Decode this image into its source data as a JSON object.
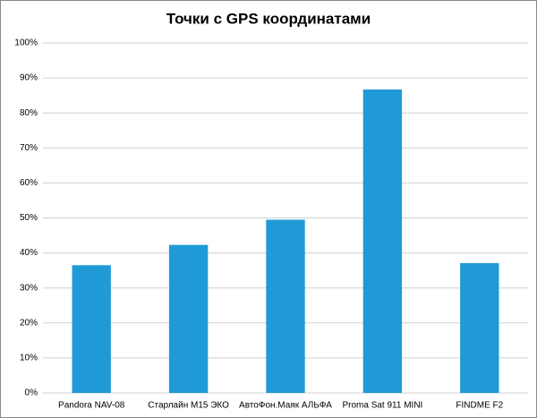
{
  "chart_data": {
    "type": "bar",
    "title": "Точки с GPS координатами",
    "categories": [
      "Pandora NAV-08",
      "Старлайн М15 ЭКО",
      "АвтоФон.Маяк АЛЬФА",
      "Proma Sat 911 MINI",
      "FINDME F2"
    ],
    "values": [
      36.5,
      42.3,
      49.5,
      86.7,
      37.1
    ],
    "color": "#1f9ad6",
    "ylim": [
      0,
      100
    ],
    "yticks": [
      {
        "value": 0,
        "label": "0%"
      },
      {
        "value": 10,
        "label": "10%"
      },
      {
        "value": 20,
        "label": "20%"
      },
      {
        "value": 30,
        "label": "30%"
      },
      {
        "value": 40,
        "label": "40%"
      },
      {
        "value": 50,
        "label": "50%"
      },
      {
        "value": 60,
        "label": "60%"
      },
      {
        "value": 70,
        "label": "70%"
      },
      {
        "value": 80,
        "label": "80%"
      },
      {
        "value": 90,
        "label": "90%"
      },
      {
        "value": 100,
        "label": "100%"
      }
    ],
    "grid": true
  }
}
